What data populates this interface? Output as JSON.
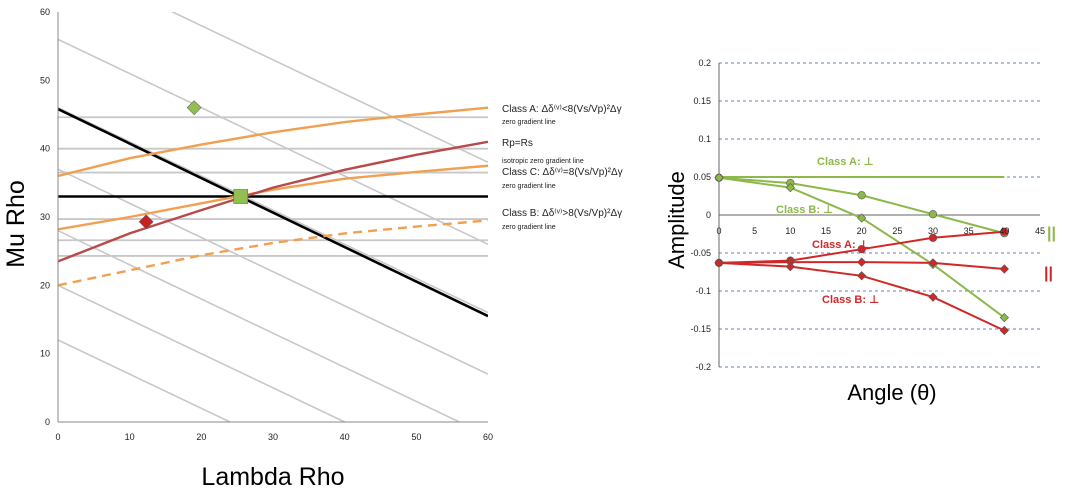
{
  "chart_data": [
    {
      "type": "line",
      "xlabel": "Lambda Rho",
      "ylabel": "Mu Rho",
      "xlim": [
        0,
        60
      ],
      "ylim": [
        0,
        60
      ],
      "x_ticks": [
        "0",
        "10",
        "20",
        "30",
        "40",
        "50",
        "60"
      ],
      "y_ticks": [
        "0",
        "10",
        "20",
        "30",
        "40",
        "50",
        "60"
      ],
      "grid": false,
      "series": [
        {
          "style": "gray-diagonal",
          "color": "#c8c8c8",
          "lines": [
            [
              [
                0,
                68
              ],
              [
                60,
                38
              ]
            ],
            [
              [
                0,
                56
              ],
              [
                60,
                26
              ]
            ],
            [
              [
                0,
                46
              ],
              [
                60,
                16
              ]
            ],
            [
              [
                0,
                37
              ],
              [
                60,
                7
              ]
            ],
            [
              [
                0,
                28
              ],
              [
                56,
                0
              ]
            ],
            [
              [
                0,
                20
              ],
              [
                40,
                0
              ]
            ],
            [
              [
                0,
                12
              ],
              [
                24,
                0
              ]
            ]
          ]
        },
        {
          "style": "gray-horizontal",
          "color": "#c8c8c8",
          "y_values": [
            24.3,
            26.6,
            29.7,
            36.5,
            40.0,
            44.6
          ]
        },
        {
          "style": "black",
          "color": "#000000",
          "points": [
            [
              0,
              45.8
            ],
            [
              60,
              15.5
            ]
          ]
        },
        {
          "style": "black",
          "color": "#000000",
          "points": [
            [
              0,
              33
            ],
            [
              60,
              33
            ]
          ]
        },
        {
          "style": "orange",
          "color": "#f0a050",
          "points": [
            [
              0,
              36
            ],
            [
              10,
              38.6
            ],
            [
              20,
              40.6
            ],
            [
              30,
              42.4
            ],
            [
              40,
              43.9
            ],
            [
              50,
              45
            ],
            [
              60,
              46
            ]
          ]
        },
        {
          "style": "orange",
          "color": "#f0a050",
          "points": [
            [
              0,
              28.2
            ],
            [
              10,
              30
            ],
            [
              20,
              32
            ],
            [
              30,
              34
            ],
            [
              40,
              35.6
            ],
            [
              50,
              36.6
            ],
            [
              60,
              37.5
            ]
          ]
        },
        {
          "style": "orange-dashed",
          "color": "#f0a050",
          "points": [
            [
              0,
              20
            ],
            [
              10,
              22.2
            ],
            [
              20,
              24.4
            ],
            [
              30,
              26.2
            ],
            [
              40,
              27.6
            ],
            [
              50,
              28.6
            ],
            [
              60,
              29.5
            ]
          ]
        },
        {
          "style": "red-brown",
          "color": "#b84a4a",
          "points": [
            [
              0,
              23.5
            ],
            [
              10,
              27.6
            ],
            [
              20,
              31
            ],
            [
              30,
              34.3
            ],
            [
              40,
              36.9
            ],
            [
              50,
              39.1
            ],
            [
              60,
              41
            ]
          ]
        }
      ],
      "markers": [
        {
          "x": 19,
          "y": 46,
          "shape": "diamond",
          "color": "#92c050"
        },
        {
          "x": 25.5,
          "y": 33,
          "shape": "square",
          "color": "#92c050"
        },
        {
          "x": 12.3,
          "y": 29.3,
          "shape": "diamond",
          "color": "#c82020"
        }
      ],
      "annotations": [
        {
          "main": "Class A: Δδ⁽ᵛ⁾<8(Vs/Vp)²Δγ",
          "sub": "zero gradient line"
        },
        {
          "main": "Rp=Rs",
          "sub": "isotropic zero gradient line"
        },
        {
          "main": "Class C: Δδ⁽ᵛ⁾=8(Vs/Vp)²Δγ",
          "sub": "zero gradient line"
        },
        {
          "main": "Class B: Δδ⁽ᵛ⁾>8(Vs/Vp)²Δγ",
          "sub": "zero gradient line"
        }
      ]
    },
    {
      "type": "line",
      "xlabel": "Angle (θ)",
      "ylabel": "Amplitude",
      "xlim": [
        0,
        45
      ],
      "ylim": [
        -0.2,
        0.2
      ],
      "x_ticks": [
        "0",
        "5",
        "10",
        "15",
        "20",
        "25",
        "30",
        "35",
        "40",
        "45"
      ],
      "y_ticks": [
        "-0.2",
        "-0.15",
        "-0.1",
        "-0.05",
        "0",
        "0.05",
        "0.1",
        "0.15",
        "0.2"
      ],
      "grid": "horizontal-dashed",
      "series": [
        {
          "label": "Class A: ⊥",
          "color": "#8db84a",
          "marker": "none",
          "points": [
            [
              0,
              0.05
            ],
            [
              10,
              0.05
            ],
            [
              20,
              0.05
            ],
            [
              30,
              0.05
            ],
            [
              40,
              0.05
            ]
          ]
        },
        {
          "color": "#8db84a",
          "marker": "circle",
          "points": [
            [
              0,
              0.049
            ],
            [
              10,
              0.042
            ],
            [
              20,
              0.026
            ],
            [
              30,
              0.001
            ],
            [
              40,
              -0.024
            ]
          ]
        },
        {
          "label": "Class B: ⊥",
          "color": "#8db84a",
          "marker": "diamond",
          "points": [
            [
              0,
              0.049
            ],
            [
              10,
              0.036
            ],
            [
              20,
              -0.004
            ],
            [
              30,
              -0.065
            ],
            [
              40,
              -0.135
            ]
          ]
        },
        {
          "label": "Class A: ⊥",
          "color": "#d02828",
          "marker": "circle",
          "points": [
            [
              0,
              -0.063
            ],
            [
              10,
              -0.06
            ],
            [
              20,
              -0.045
            ],
            [
              30,
              -0.03
            ],
            [
              40,
              -0.022
            ]
          ]
        },
        {
          "color": "#d02828",
          "marker": "diamond",
          "points": [
            [
              0,
              -0.063
            ],
            [
              10,
              -0.062
            ],
            [
              20,
              -0.062
            ],
            [
              30,
              -0.063
            ],
            [
              40,
              -0.071
            ]
          ]
        },
        {
          "label": "Class B: ⊥",
          "color": "#d02828",
          "marker": "diamond",
          "points": [
            [
              0,
              -0.063
            ],
            [
              10,
              -0.068
            ],
            [
              20,
              -0.08
            ],
            [
              30,
              -0.108
            ],
            [
              40,
              -0.152
            ]
          ]
        }
      ],
      "parallel_marks": [
        {
          "text": "||",
          "color": "#8db84a"
        },
        {
          "text": "||",
          "color": "#d02828"
        }
      ]
    }
  ]
}
